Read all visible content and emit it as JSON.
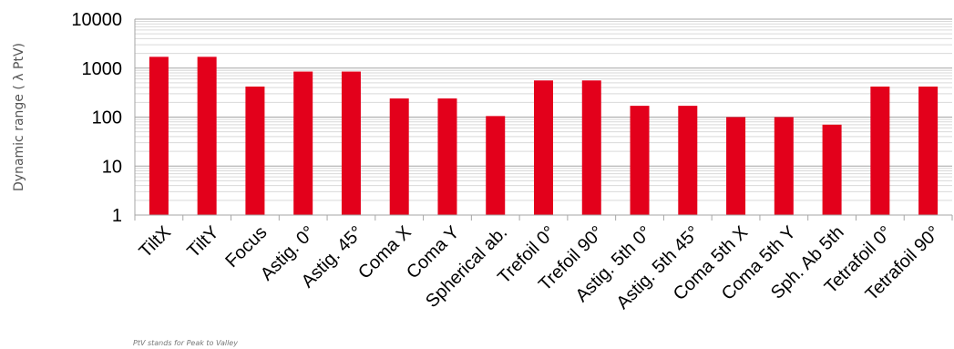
{
  "chart_data": {
    "type": "bar",
    "ylabel": "Dynamic range ( λ PtV)",
    "xlabel": "",
    "title": "",
    "yscale": "log",
    "ylim": [
      1,
      10000
    ],
    "yticks": [
      "1",
      "10",
      "100",
      "1000",
      "10000"
    ],
    "grid": true,
    "legend": "none",
    "bar_color": "#e3001b",
    "categories": [
      "TiltX",
      "TiltY",
      "Focus",
      "Astig. 0°",
      "Astig. 45°",
      "Coma X",
      "Coma Y",
      "Spherical ab.",
      "Trefoil 0°",
      "Trefoil 90°",
      "Astig. 5th 0°",
      "Astig. 5th 45°",
      "Coma 5th X",
      "Coma 5th Y",
      "Sph. Ab 5th",
      "Tetrafoil 0°",
      "Tetrafoil 90°"
    ],
    "values": [
      1700,
      1700,
      420,
      850,
      850,
      240,
      240,
      105,
      560,
      560,
      170,
      170,
      100,
      100,
      70,
      420,
      420
    ]
  },
  "footnote": "PtV stands for Peak to Valley"
}
